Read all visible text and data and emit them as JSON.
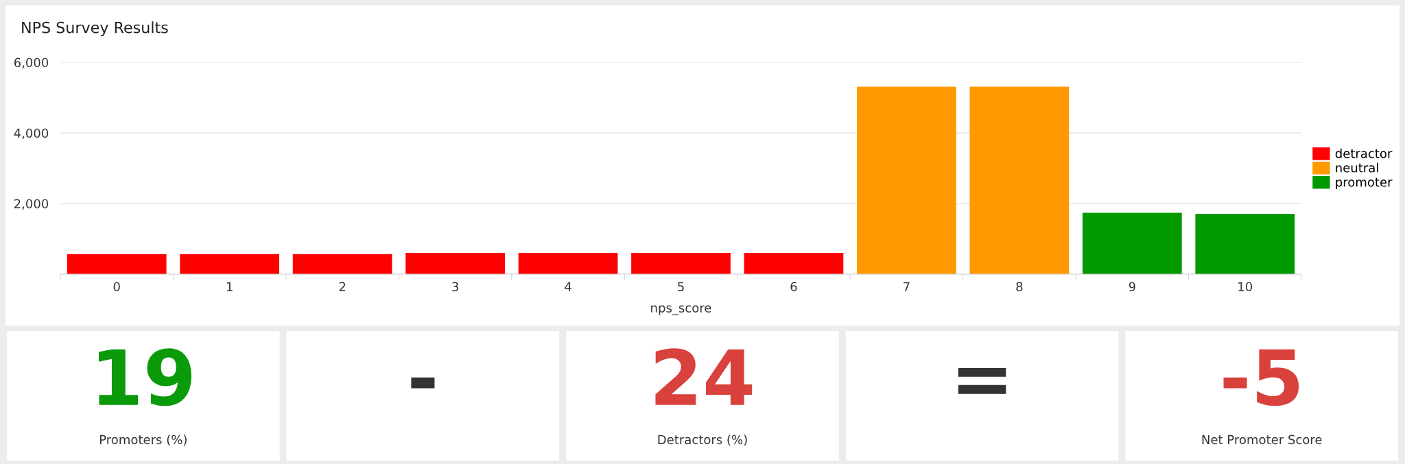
{
  "chart_data": [
    {
      "type": "bar",
      "title": "NPS Survey Results",
      "xlabel": "nps_score",
      "categories": [
        "0",
        "1",
        "2",
        "3",
        "4",
        "5",
        "6",
        "7",
        "8",
        "9",
        "10"
      ],
      "series": [
        {
          "name": "detractor",
          "color": "#ff0000",
          "values": [
            570,
            570,
            570,
            600,
            600,
            600,
            600,
            null,
            null,
            null,
            null
          ]
        },
        {
          "name": "neutral",
          "color": "#ff9900",
          "values": [
            null,
            null,
            null,
            null,
            null,
            null,
            null,
            5310,
            5310,
            null,
            null
          ]
        },
        {
          "name": "promoter",
          "color": "#009900",
          "values": [
            null,
            null,
            null,
            null,
            null,
            null,
            null,
            null,
            null,
            1740,
            1710
          ]
        }
      ],
      "ylim": [
        0,
        6000
      ],
      "yticks": [
        {
          "value": 2000,
          "label": "2,000"
        },
        {
          "value": 4000,
          "label": "4,000"
        },
        {
          "value": 6000,
          "label": "6,000"
        }
      ],
      "grid": "y",
      "legend": "right"
    },
    {
      "type": "other",
      "categories": [
        "Promoters (%)",
        null,
        "Detractors (%)",
        null,
        "Net Promoter Score"
      ],
      "value_labels": [
        "19",
        "-",
        "24",
        "=",
        "-5"
      ],
      "colors": [
        "#0a9a0a",
        "#333333",
        "#d9413c",
        "#333333",
        "#d9413c"
      ]
    }
  ]
}
